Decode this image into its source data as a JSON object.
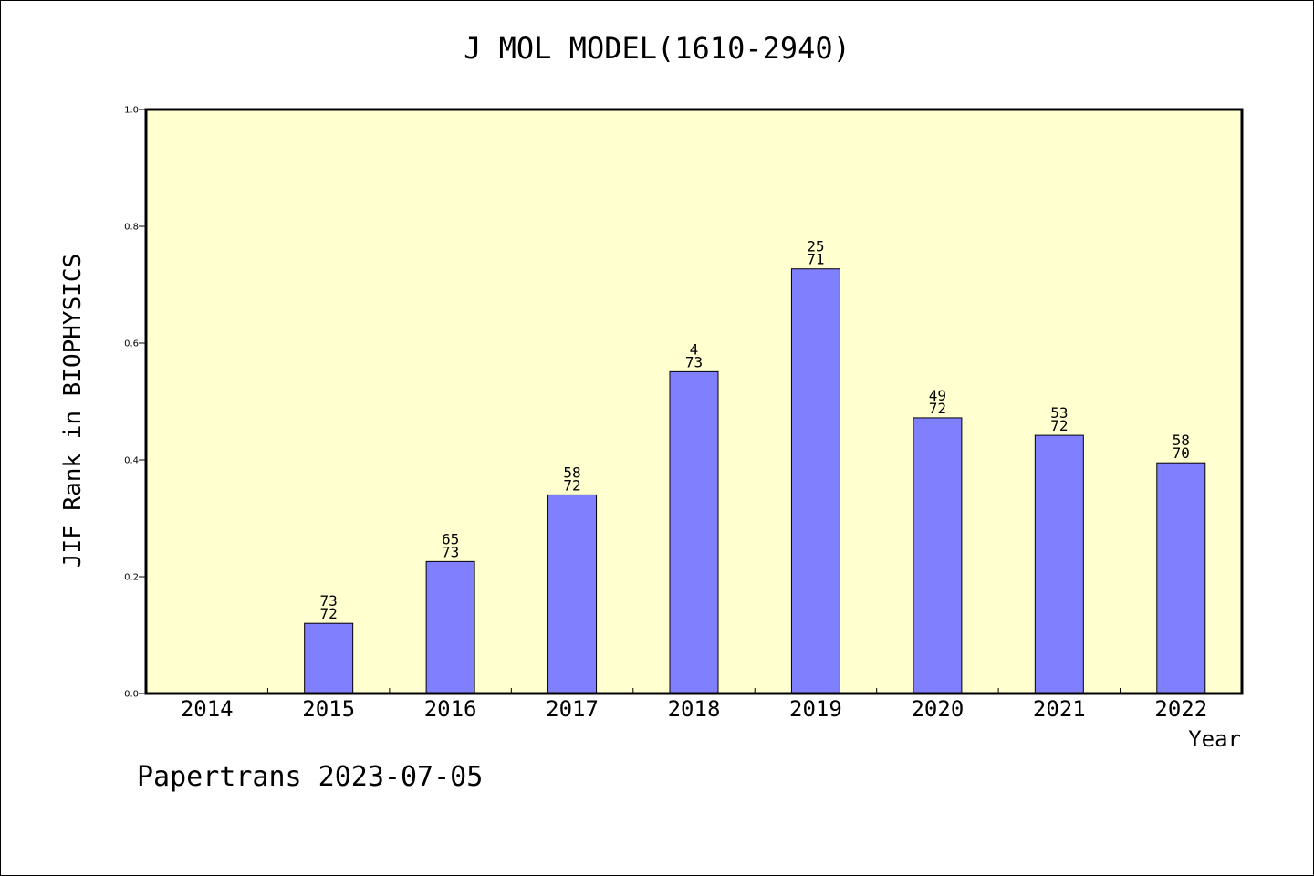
{
  "chart_data": {
    "type": "bar",
    "title": "J MOL MODEL(1610-2940)",
    "xlabel": "Year",
    "ylabel": "JIF Rank in BIOPHYSICS",
    "categories": [
      "2014",
      "2015",
      "2016",
      "2017",
      "2018",
      "2019",
      "2020",
      "2021",
      "2022"
    ],
    "values": [
      null,
      0.12,
      0.226,
      0.34,
      0.551,
      0.727,
      0.472,
      0.442,
      0.395
    ],
    "labels_top": [
      "",
      "73",
      "65",
      "58",
      "4",
      "25",
      "49",
      "53",
      "58"
    ],
    "labels_bottom": [
      "",
      "72",
      "73",
      "72",
      "73",
      "71",
      "72",
      "72",
      "70"
    ],
    "ylim": [
      0,
      1.0
    ],
    "yticks": [
      "0.0",
      "0.2",
      "0.4",
      "0.6",
      "0.8",
      "1.0"
    ],
    "grid": false,
    "colors": {
      "plot_background": "#FFFFD0",
      "bar_fill": "#8080FF",
      "bar_stroke": "#000000"
    }
  },
  "footer": "Papertrans 2023-07-05"
}
